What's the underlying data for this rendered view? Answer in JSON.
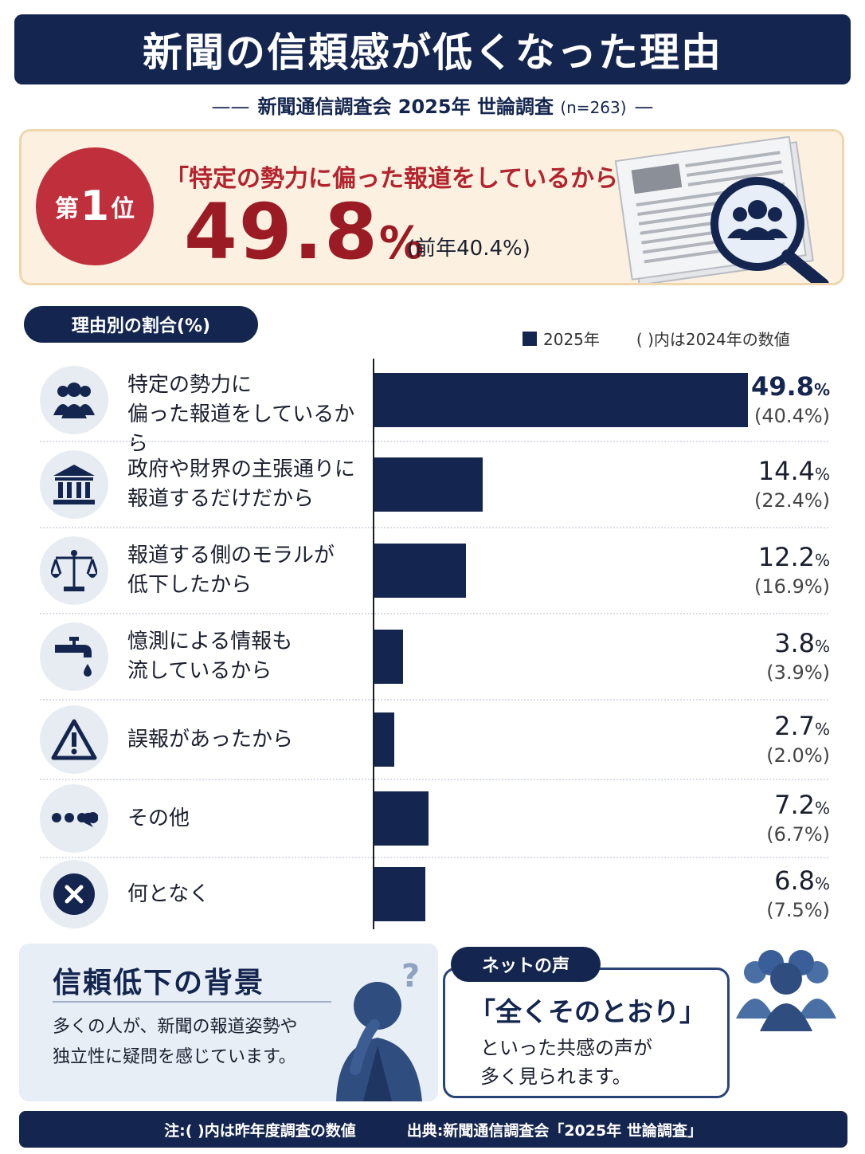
{
  "header": {
    "title": "新聞の信頼感が低くなった理由",
    "subtitle_main": "新聞通信調査会 2025年 世論調査",
    "subtitle_n": "(n=263)"
  },
  "top": {
    "rank_prefix": "第",
    "rank_num": "1",
    "rank_suffix": "位",
    "quote": "「特定の勢力に偏った報道をしているから」",
    "pct_value": "49.8",
    "pct_unit": "%",
    "prev": "(前年40.4%)"
  },
  "section_title": "理由別の割合(%)",
  "legend": {
    "series_label": "2025年",
    "note": "( )内は2024年の数値"
  },
  "chart_data": {
    "type": "bar",
    "orientation": "horizontal",
    "categories": [
      "特定の勢力に偏った報道をしているから",
      "政府や財界の主張通りに報道するだけだから",
      "報道する側のモラルが低下したから",
      "憶測による情報も流しているから",
      "誤報があったから",
      "その他",
      "何となく"
    ],
    "series": [
      {
        "name": "2025年",
        "values": [
          49.8,
          14.4,
          12.2,
          3.8,
          2.7,
          7.2,
          6.8
        ]
      }
    ],
    "previous_year_values": [
      40.4,
      22.4,
      16.9,
      3.9,
      2.0,
      6.7,
      7.5
    ],
    "unit": "%",
    "xlim": [
      0,
      52
    ],
    "color": "#14264f"
  },
  "rows": [
    {
      "label_lines": [
        "特定の勢力に",
        "偏った報道をしているから"
      ],
      "value_text": "49.8",
      "prev_text": "(40.4%)",
      "icon": "people-icon"
    },
    {
      "label_lines": [
        "政府や財界の主張通りに",
        "報道するだけだから"
      ],
      "value_text": "14.4",
      "prev_text": "(22.4%)",
      "icon": "government-building-icon"
    },
    {
      "label_lines": [
        "報道する側のモラルが",
        "低下したから"
      ],
      "value_text": "12.2",
      "prev_text": "(16.9%)",
      "icon": "scales-icon"
    },
    {
      "label_lines": [
        "憶測による情報も",
        "流しているから"
      ],
      "value_text": "3.8",
      "prev_text": "(3.9%)",
      "icon": "faucet-icon"
    },
    {
      "label_lines": [
        "誤報があったから"
      ],
      "value_text": "2.7",
      "prev_text": "(2.0%)",
      "icon": "warning-icon"
    },
    {
      "label_lines": [
        "その他"
      ],
      "value_text": "7.2",
      "prev_text": "(6.7%)",
      "icon": "chat-dots-icon"
    },
    {
      "label_lines": [
        "何となく"
      ],
      "value_text": "6.8",
      "prev_text": "(7.5%)",
      "icon": "x-circle-icon"
    }
  ],
  "background_box": {
    "title": "信頼低下の背景",
    "body_lines": [
      "多くの人が、新聞の報道姿勢や",
      "独立性に疑問を感じています。"
    ]
  },
  "net_voice": {
    "pill": "ネットの声",
    "quote": "「全くそのとおり」",
    "body_lines": [
      "といった共感の声が",
      "多く見られます。"
    ]
  },
  "footer": {
    "note": "注:( )内は昨年度調査の数値",
    "source": "出典:新聞通信調査会「2025年 世論調査」"
  },
  "colors": {
    "navy": "#14264f",
    "red": "#c0303c",
    "dark_red": "#9a1b24",
    "cream": "#fcf1e0"
  }
}
